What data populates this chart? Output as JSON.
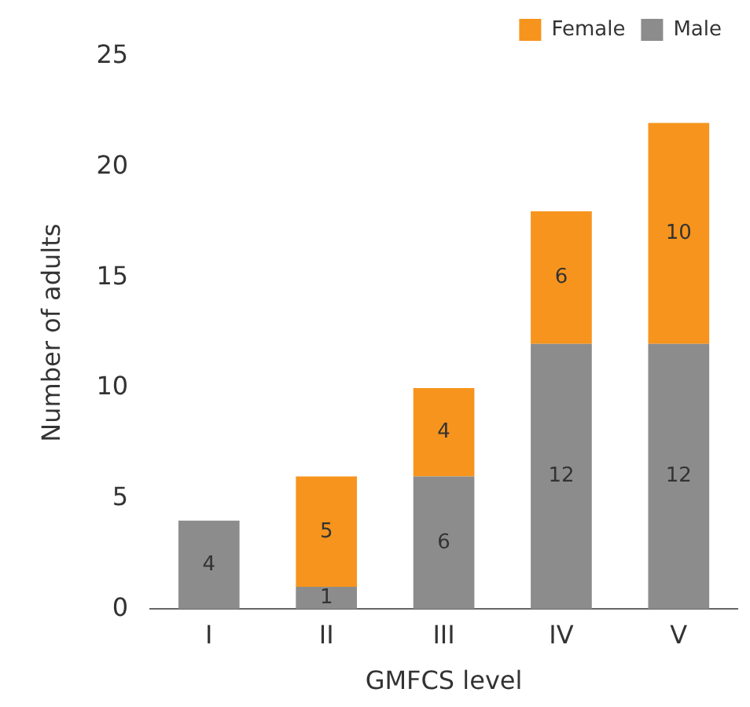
{
  "chart_data": {
    "type": "bar",
    "stacked": true,
    "xlabel": "GMFCS level",
    "ylabel": "Number of adults",
    "categories": [
      "I",
      "II",
      "III",
      "IV",
      "V"
    ],
    "series": [
      {
        "name": "Male",
        "color": "#8c8c8c",
        "values": [
          4,
          1,
          6,
          12,
          12
        ]
      },
      {
        "name": "Female",
        "color": "#f7941d",
        "values": [
          null,
          5,
          4,
          6,
          10
        ]
      }
    ],
    "ylim": [
      0,
      25
    ],
    "yticks": [
      0,
      5,
      10,
      15,
      20,
      25
    ],
    "grid": false,
    "legend": "top right",
    "data_labels": true
  }
}
